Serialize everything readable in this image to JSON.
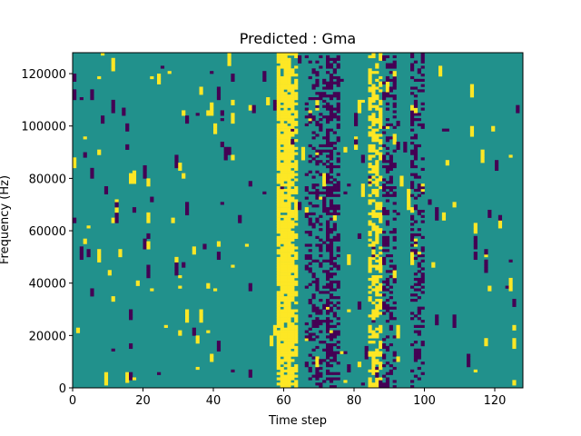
{
  "chart_data": {
    "type": "heatmap",
    "title": "Predicted : Gma",
    "xlabel": "Time step",
    "ylabel": "Frequency (Hz)",
    "xlim": [
      0,
      128
    ],
    "ylim": [
      0,
      128000
    ],
    "x_ticks": [
      0,
      20,
      40,
      60,
      80,
      100,
      120
    ],
    "x_tick_labels": [
      "0",
      "20",
      "40",
      "60",
      "80",
      "100",
      "120"
    ],
    "y_ticks": [
      0,
      20000,
      40000,
      60000,
      80000,
      100000,
      120000
    ],
    "y_tick_labels": [
      "0",
      "20000",
      "40000",
      "60000",
      "80000",
      "100000",
      "120000"
    ],
    "grid": false,
    "colormap": [
      "#440154",
      "#21918c",
      "#fde725"
    ],
    "background_level": 1,
    "bands": [
      {
        "x0": 58,
        "x1": 62,
        "level": 2,
        "density": 0.85
      },
      {
        "x0": 61,
        "x1": 64,
        "level": 2,
        "density": 0.6
      },
      {
        "x0": 66,
        "x1": 74,
        "level": 0,
        "density": 0.3
      },
      {
        "x0": 72,
        "x1": 76,
        "level": 0,
        "density": 0.4
      },
      {
        "x0": 84,
        "x1": 88,
        "level": 2,
        "density": 0.55
      },
      {
        "x0": 88,
        "x1": 92,
        "level": 0,
        "density": 0.35
      },
      {
        "x0": 96,
        "x1": 100,
        "level": 0,
        "density": 0.3
      }
    ],
    "noise_density": 0.06
  }
}
